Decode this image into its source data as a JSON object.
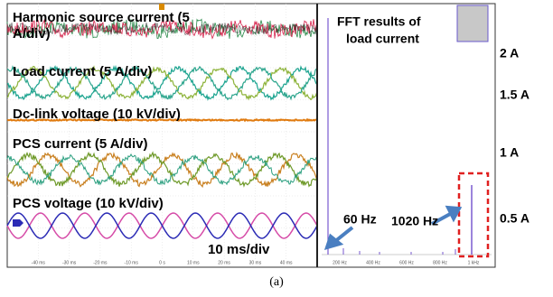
{
  "scope": {
    "waveform_labels": [
      "Harmonic source current (5",
      "A/div)",
      "Load current (5 A/div)",
      "Dc-link voltage (10 kV/div)",
      "PCS current (5 A/div)",
      "PCS voltage (10 kV/div)"
    ],
    "time_scale": "10 ms/div",
    "time_axis": [
      "-40 ms",
      "-30 ms",
      "-20 ms",
      "-10 ms",
      "0 s",
      "10 ms",
      "20 ms",
      "30 ms",
      "40 ms"
    ]
  },
  "fft": {
    "title": [
      "FFT results of",
      "load current"
    ],
    "freq_axis": [
      "200 Hz",
      "400 Hz",
      "600 Hz",
      "800 Hz",
      "1 kHz"
    ],
    "annotations": [
      "60 Hz",
      "1020 Hz"
    ],
    "amplitude_labels": [
      "2 A",
      "1.5 A",
      "1 A",
      "0.5 A"
    ]
  },
  "caption": "(a)"
}
